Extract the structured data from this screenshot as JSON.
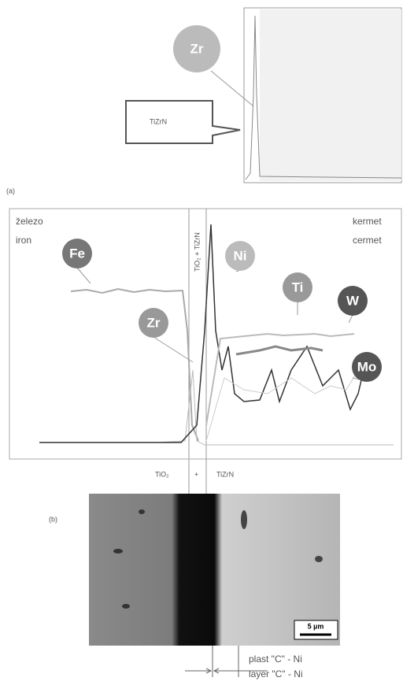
{
  "top_panel": {
    "element_label": "Zr",
    "layer_label": "TiZrN"
  },
  "panel_a": {
    "label": "(a)",
    "left_label_1": "železo",
    "left_label_2": "iron",
    "right_label_1": "kermet",
    "right_label_2": "cermet",
    "interface_label": "TiO₂ + TiZrN",
    "elements": [
      "Fe",
      "Ni",
      "Zr",
      "Ti",
      "W",
      "Mo"
    ],
    "bottom_labels": [
      "TiO₂",
      "+",
      "TiZrN"
    ]
  },
  "panel_b": {
    "label": "(b)",
    "scale_bar": "5 µm",
    "layer_label_1": "plast \"C\" - Ni",
    "layer_label_2": "layer \"C\" - Ni"
  }
}
